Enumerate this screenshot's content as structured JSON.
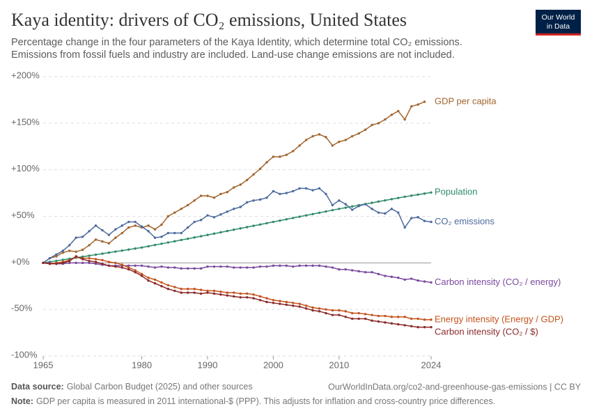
{
  "chart_data": {
    "type": "line",
    "title": "Kaya identity: drivers of CO₂ emissions, United States",
    "subtitle": [
      "Percentage change in the four parameters of the Kaya Identity, which determine total CO₂ emissions.",
      "Emissions from fossil fuels and industry are included. Land-use change emissions are not included."
    ],
    "x": [
      1965,
      1966,
      1967,
      1968,
      1969,
      1970,
      1971,
      1972,
      1973,
      1974,
      1975,
      1976,
      1977,
      1978,
      1979,
      1980,
      1981,
      1982,
      1983,
      1984,
      1985,
      1986,
      1987,
      1988,
      1989,
      1990,
      1991,
      1992,
      1993,
      1994,
      1995,
      1996,
      1997,
      1998,
      1999,
      2000,
      2001,
      2002,
      2003,
      2004,
      2005,
      2006,
      2007,
      2008,
      2009,
      2010,
      2011,
      2012,
      2013,
      2014,
      2015,
      2016,
      2017,
      2018,
      2019,
      2020,
      2021,
      2022,
      2023,
      2024
    ],
    "xlim": [
      1965,
      2024
    ],
    "xticks": [
      1965,
      1980,
      1990,
      2000,
      2010,
      2024
    ],
    "ylim": [
      -100,
      200
    ],
    "yticks": [
      {
        "value": -100,
        "label": "-100%"
      },
      {
        "value": -50,
        "label": "-50%"
      },
      {
        "value": 0,
        "label": "+0%"
      },
      {
        "value": 50,
        "label": "+50%"
      },
      {
        "value": 100,
        "label": "+100%"
      },
      {
        "value": 150,
        "label": "+150%"
      },
      {
        "value": 200,
        "label": "+200%"
      }
    ],
    "grid": true,
    "series": [
      {
        "name": "GDP per capita",
        "color": "#a2652e",
        "values": [
          0,
          5,
          7,
          11,
          13,
          12,
          14,
          19,
          25,
          23,
          21,
          27,
          32,
          38,
          40,
          38,
          40,
          36,
          41,
          50,
          54,
          58,
          62,
          67,
          72,
          72,
          70,
          74,
          76,
          81,
          84,
          89,
          95,
          101,
          108,
          114,
          114,
          116,
          120,
          126,
          132,
          136,
          138,
          135,
          126,
          130,
          132,
          136,
          139,
          143,
          148,
          150,
          154,
          159,
          163,
          154,
          168,
          170,
          173,
          null
        ]
      },
      {
        "name": "Population",
        "color": "#2e8b67",
        "values": [
          0,
          1.1,
          2.2,
          3.3,
          4.4,
          5.5,
          6.6,
          7.7,
          8.8,
          9.9,
          11,
          12.1,
          13.2,
          14.3,
          15.4,
          16.5,
          17.8,
          19.2,
          20.5,
          21.9,
          23.2,
          24.6,
          25.9,
          27.3,
          28.6,
          30,
          31.4,
          32.8,
          34.2,
          35.6,
          37,
          38.4,
          39.8,
          41.2,
          42.6,
          44,
          45.4,
          46.8,
          48.2,
          49.6,
          51,
          52.4,
          53.8,
          55.2,
          56.6,
          58,
          59.3,
          60.6,
          61.9,
          63.2,
          64.5,
          65.8,
          67.1,
          68.4,
          69.7,
          71,
          72.2,
          73.3,
          74.4,
          75.6
        ]
      },
      {
        "name": "CO₂ emissions",
        "color": "#4c6a9c",
        "values": [
          0,
          5,
          9,
          13,
          19,
          27,
          28,
          34,
          40,
          35,
          30,
          36,
          40,
          44,
          44,
          39,
          34,
          27,
          28,
          32,
          32,
          32,
          38,
          44,
          46,
          51,
          49,
          52,
          55,
          58,
          60,
          65,
          67,
          68,
          70,
          77,
          74,
          75,
          77,
          80,
          80,
          78,
          80,
          74,
          62,
          67,
          63,
          57,
          61,
          63,
          58,
          54,
          53,
          58,
          54,
          38,
          48,
          49,
          45,
          44
        ]
      },
      {
        "name": "Carbon intensity (CO₂ / energy)",
        "color": "#7a4a9e",
        "values": [
          0,
          0,
          -1,
          -1,
          0,
          0,
          0,
          0,
          -1,
          -2,
          -3,
          -3,
          -3,
          -3,
          -3,
          -3,
          -4,
          -5,
          -4,
          -5,
          -5,
          -6,
          -6,
          -6,
          -6,
          -4,
          -4,
          -4,
          -4,
          -5,
          -5,
          -5,
          -5,
          -4,
          -4,
          -3,
          -3,
          -3,
          -4,
          -3,
          -3,
          -3,
          -3,
          -4,
          -5,
          -7,
          -7,
          -8,
          -9,
          -10,
          -10,
          -12,
          -14,
          -15,
          -16,
          -18,
          -17,
          -19,
          -20,
          -21
        ]
      },
      {
        "name": "Energy intensity (Energy / GDP)",
        "color": "#c4521c",
        "values": [
          0,
          -1,
          0,
          1,
          3,
          6,
          5,
          5,
          4,
          3,
          1,
          0,
          -2,
          -5,
          -8,
          -12,
          -16,
          -18,
          -21,
          -24,
          -26,
          -28,
          -28,
          -28,
          -29,
          -30,
          -30,
          -31,
          -32,
          -32,
          -33,
          -33,
          -34,
          -36,
          -38,
          -40,
          -41,
          -42,
          -43,
          -44,
          -46,
          -48,
          -49,
          -50,
          -51,
          -51,
          -52,
          -54,
          -54,
          -55,
          -56,
          -57,
          -57,
          -58,
          -58,
          -58,
          -60,
          -60,
          -61,
          -61
        ]
      },
      {
        "name": "Carbon intensity (CO₂ / $)",
        "color": "#8b2a2a",
        "values": [
          0,
          -1,
          -1,
          0,
          2,
          7,
          4,
          2,
          1,
          -1,
          -3,
          -4,
          -5,
          -7,
          -10,
          -14,
          -19,
          -22,
          -25,
          -28,
          -30,
          -32,
          -32,
          -32,
          -33,
          -32,
          -33,
          -34,
          -35,
          -36,
          -37,
          -37,
          -38,
          -40,
          -42,
          -43,
          -44,
          -45,
          -46,
          -47,
          -49,
          -51,
          -52,
          -54,
          -56,
          -56,
          -58,
          -60,
          -60,
          -60,
          -62,
          -63,
          -64,
          -65,
          -66,
          -67,
          -68,
          -69,
          -69,
          -69
        ]
      }
    ]
  },
  "logo": [
    "Our World",
    "in Data"
  ],
  "footer": {
    "source_label": "Data source:",
    "source": "Global Carbon Budget (2025) and other sources",
    "url": "OurWorldInData.org/co2-and-greenhouse-gas-emissions | CC BY",
    "note_label": "Note:",
    "note": "GDP per capita is measured in 2011 international-$ (PPP). This adjusts for inflation and cross-country price differences."
  }
}
